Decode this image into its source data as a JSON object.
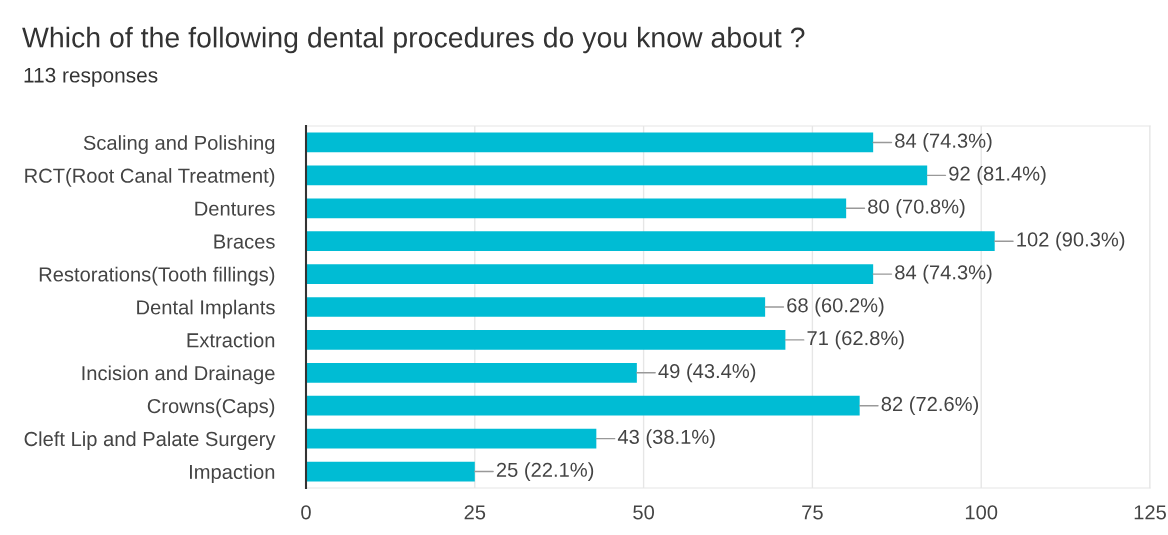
{
  "chart_data": {
    "type": "bar",
    "orientation": "horizontal",
    "title": "Which of the following dental procedures do you know about ?",
    "subtitle": "113 responses",
    "categories": [
      "Scaling and Polishing",
      "RCT(Root Canal Treatment)",
      "Dentures",
      "Braces",
      "Restorations(Tooth fillings)",
      "Dental Implants",
      "Extraction",
      "Incision and Drainage",
      "Crowns(Caps)",
      "Cleft Lip and Palate Surgery",
      "Impaction"
    ],
    "values": [
      84,
      92,
      80,
      102,
      84,
      68,
      71,
      49,
      82,
      43,
      25
    ],
    "value_labels": [
      "84 (74.3%)",
      "92 (81.4%)",
      "80 (70.8%)",
      "102 (90.3%)",
      "84 (74.3%)",
      "68 (60.2%)",
      "71 (62.8%)",
      "49 (43.4%)",
      "82 (72.6%)",
      "43 (38.1%)",
      "25 (22.1%)"
    ],
    "color": "#00bcd4",
    "xlim": [
      0,
      125
    ],
    "xticks": [
      0,
      25,
      50,
      75,
      100,
      125
    ],
    "grid": "x"
  }
}
